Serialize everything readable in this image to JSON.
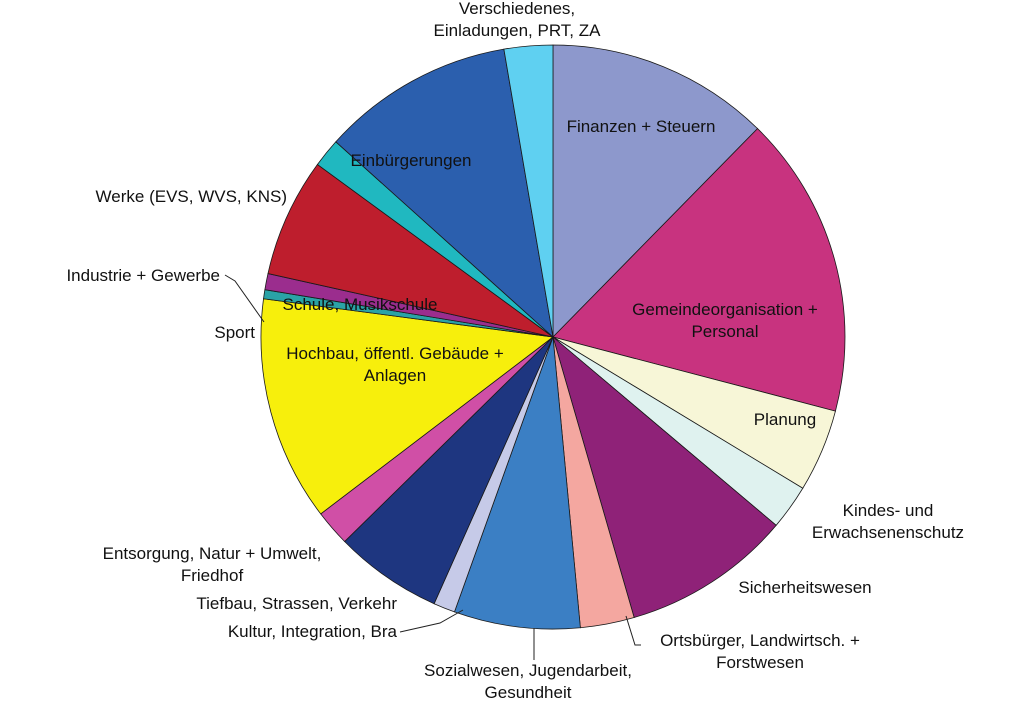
{
  "chart_data": {
    "type": "pie",
    "title": "",
    "legend": "none",
    "slices": [
      {
        "label": "Finanzen + Steuern",
        "value": 12.4,
        "color": "#8d98cc"
      },
      {
        "label": "Gemeindeorganisation + Personal",
        "value": 16.8,
        "color": "#c8337f"
      },
      {
        "label": "Planung",
        "value": 4.6,
        "color": "#f7f6d7"
      },
      {
        "label": "Kindes- und Erwachsenenschutz",
        "value": 2.5,
        "color": "#dff2ef"
      },
      {
        "label": "Sicherheitswesen",
        "value": 9.4,
        "color": "#8f2278"
      },
      {
        "label": "Ortsbürger, Landwirtsch. + Forstwesen",
        "value": 3.0,
        "color": "#f4a7a0"
      },
      {
        "label": "Sozialwesen, Jugendarbeit, Gesundheit",
        "value": 7.0,
        "color": "#3b7fc4"
      },
      {
        "label": "Kultur, Integration, Bra",
        "value": 1.2,
        "color": "#c6cae8"
      },
      {
        "label": "Tiefbau, Strassen, Verkehr",
        "value": 6.0,
        "color": "#1e3680"
      },
      {
        "label": "Entsorgung, Natur + Umwelt, Friedhof",
        "value": 2.0,
        "color": "#d04fa6"
      },
      {
        "label": "Hochbau, öffentl. Gebäude + Anlagen",
        "value": 12.5,
        "color": "#f7ef0c"
      },
      {
        "label": "Sport",
        "value": 0.5,
        "color": "#2aa3a6"
      },
      {
        "label": "Industrie + Gewerbe",
        "value": 0.9,
        "color": "#9b2d8e"
      },
      {
        "label": "Schule, Musikschule",
        "value": 6.6,
        "color": "#be1e2d"
      },
      {
        "label": "Werke (EVS, WVS, KNS)",
        "value": 1.6,
        "color": "#20b8c0"
      },
      {
        "label": "Einbürgerungen",
        "value": 10.7,
        "color": "#2b5fae"
      },
      {
        "label": "Verschiedenes, Einladungen, PRT, ZA",
        "value": 2.7,
        "color": "#5fd0f1"
      }
    ]
  }
}
